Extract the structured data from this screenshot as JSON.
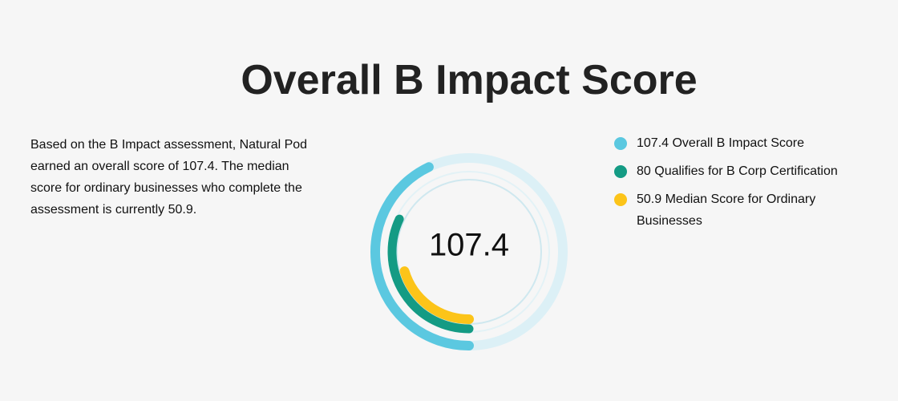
{
  "chart_data": {
    "type": "radial-bar",
    "title": "Overall B Impact Score",
    "description": "Based on the B Impact assessment, Natural Pod earned an overall score of 107.4. The median score for ordinary businesses who complete the assessment is currently 50.9.",
    "ylim": [
      0,
      250
    ],
    "series": [
      {
        "name": "107.4 Overall B Impact Score",
        "color": "#5bc8e0",
        "values": [
          107.4
        ]
      },
      {
        "name": "80 Qualifies for B Corp Certification",
        "color": "#149b84",
        "values": [
          80
        ]
      },
      {
        "name": "50.9 Median Score for Ordinary Businesses",
        "color": "#fcc419",
        "values": [
          50.9
        ]
      }
    ]
  }
}
